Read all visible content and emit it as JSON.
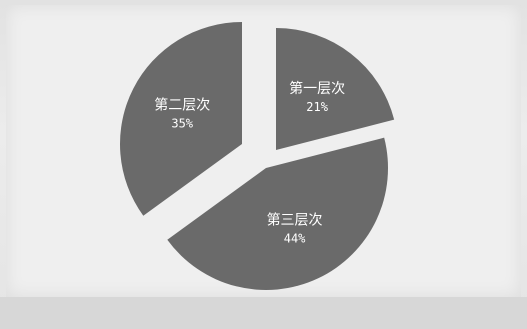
{
  "chart_data": {
    "type": "pie",
    "categories": [
      "第一层次",
      "第二层次",
      "第三层次"
    ],
    "values": [
      21,
      35,
      44
    ],
    "value_labels": [
      "21%",
      "35%",
      "44%"
    ],
    "exploded": true,
    "legend": "none",
    "colors": {
      "slice": "#6a6a6a",
      "label": "#ffffff",
      "background": "#efefef"
    }
  }
}
